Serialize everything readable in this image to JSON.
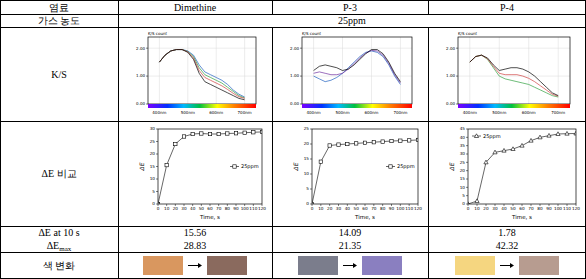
{
  "table": {
    "header": [
      "염료",
      "Dimethine",
      "P-3",
      "P-4"
    ],
    "gas_row": {
      "label": "가스 농도",
      "value": "25ppm"
    },
    "ks_label": "K/S",
    "de_label": "ΔE 비교",
    "de10_label": "ΔE at 10 s",
    "de10": [
      15.56,
      14.09,
      1.78
    ],
    "demax_label": {
      "text": "ΔE",
      "sub": "max"
    },
    "demax": [
      28.83,
      21.35,
      42.32
    ],
    "color_label": "색 변화",
    "color_change": [
      {
        "from": "#d9975f",
        "to": "#8a6a5e"
      },
      {
        "from": "#7b7d8c",
        "to": "#8a7fc0"
      },
      {
        "from": "#f5d680",
        "to": "#b79c90"
      }
    ]
  },
  "chart_data": [
    {
      "type": "line",
      "ylabel": "K/S count",
      "grid": true,
      "x": [
        400,
        420,
        440,
        460,
        480,
        500,
        520,
        540,
        560,
        580,
        600,
        620,
        640,
        660,
        680,
        700
      ],
      "xlim": [
        360,
        740
      ],
      "xticks": [
        {
          "value": 400,
          "label": "400nm"
        },
        {
          "value": 500,
          "label": "500nm"
        },
        {
          "value": 600,
          "label": "600nm"
        },
        {
          "value": 700,
          "label": "700nm"
        }
      ],
      "ylim": [
        0,
        2.4
      ],
      "yticks": [
        {
          "value": 0,
          "label": "0.00"
        },
        {
          "value": 1,
          "label": "1.00"
        },
        {
          "value": 2,
          "label": "2.00"
        }
      ],
      "series": [
        {
          "color": "#2060c0",
          "values": [
            1.5,
            1.75,
            1.9,
            1.95,
            1.95,
            1.9,
            1.75,
            1.4,
            1.15,
            1.05,
            0.95,
            0.85,
            0.7,
            0.5,
            0.35,
            0.25
          ]
        },
        {
          "color": "#30a040",
          "values": [
            1.5,
            1.75,
            1.9,
            1.95,
            1.95,
            1.88,
            1.7,
            1.3,
            1.05,
            0.95,
            0.85,
            0.75,
            0.6,
            0.45,
            0.3,
            0.22
          ]
        },
        {
          "color": "#d04040",
          "values": [
            1.5,
            1.75,
            1.9,
            1.95,
            1.95,
            1.87,
            1.65,
            1.2,
            0.95,
            0.85,
            0.75,
            0.65,
            0.52,
            0.38,
            0.26,
            0.2
          ]
        },
        {
          "color": "#000000",
          "values": [
            1.5,
            1.75,
            1.9,
            1.95,
            1.95,
            1.85,
            1.6,
            1.1,
            0.8,
            0.7,
            0.6,
            0.5,
            0.4,
            0.3,
            0.2,
            0.15
          ]
        }
      ]
    },
    {
      "type": "line",
      "ylabel": "K/S count",
      "grid": true,
      "x": [
        400,
        420,
        440,
        460,
        480,
        500,
        520,
        540,
        560,
        580,
        600,
        620,
        640,
        660,
        680,
        700
      ],
      "xlim": [
        360,
        740
      ],
      "xticks": [
        {
          "value": 400,
          "label": "400nm"
        },
        {
          "value": 500,
          "label": "500nm"
        },
        {
          "value": 600,
          "label": "600nm"
        },
        {
          "value": 700,
          "label": "700nm"
        }
      ],
      "ylim": [
        0,
        2.4
      ],
      "yticks": [
        {
          "value": 0,
          "label": "0.00"
        },
        {
          "value": 1,
          "label": "1.00"
        },
        {
          "value": 2,
          "label": "2.00"
        }
      ],
      "series": [
        {
          "color": "#2060c0",
          "values": [
            1.0,
            0.9,
            0.8,
            0.85,
            0.95,
            1.1,
            1.3,
            1.5,
            1.7,
            1.85,
            1.9,
            1.85,
            1.7,
            1.4,
            1.0,
            0.7
          ]
        },
        {
          "color": "#7030a0",
          "values": [
            1.1,
            1.15,
            1.1,
            1.05,
            1.05,
            1.1,
            1.25,
            1.45,
            1.65,
            1.82,
            1.92,
            1.9,
            1.75,
            1.45,
            1.05,
            0.75
          ]
        },
        {
          "color": "#000000",
          "values": [
            1.2,
            1.35,
            1.4,
            1.35,
            1.3,
            1.2,
            1.25,
            1.4,
            1.6,
            1.8,
            1.95,
            1.95,
            1.8,
            1.5,
            1.1,
            0.8
          ]
        }
      ]
    },
    {
      "type": "line",
      "ylabel": "K/S count",
      "grid": true,
      "x": [
        400,
        420,
        440,
        460,
        480,
        500,
        520,
        540,
        560,
        580,
        600,
        620,
        640,
        660,
        680,
        700
      ],
      "xlim": [
        360,
        740
      ],
      "xticks": [
        {
          "value": 400,
          "label": "400nm"
        },
        {
          "value": 500,
          "label": "500nm"
        },
        {
          "value": 600,
          "label": "600nm"
        },
        {
          "value": 700,
          "label": "700nm"
        }
      ],
      "ylim": [
        0,
        2.4
      ],
      "yticks": [
        {
          "value": 0,
          "label": "0.00"
        },
        {
          "value": 1,
          "label": "1.00"
        },
        {
          "value": 2,
          "label": "2.00"
        }
      ],
      "series": [
        {
          "color": "#30a040",
          "values": [
            1.5,
            1.7,
            1.75,
            1.6,
            1.3,
            1.0,
            0.9,
            0.85,
            0.8,
            0.75,
            0.7,
            0.6,
            0.5,
            0.4,
            0.3,
            0.25
          ]
        },
        {
          "color": "#d04040",
          "values": [
            1.5,
            1.7,
            1.75,
            1.62,
            1.35,
            1.1,
            1.05,
            1.05,
            1.05,
            1.0,
            0.92,
            0.8,
            0.65,
            0.5,
            0.35,
            0.28
          ]
        },
        {
          "color": "#000000",
          "values": [
            1.5,
            1.7,
            1.75,
            1.65,
            1.4,
            1.2,
            1.25,
            1.3,
            1.3,
            1.25,
            1.15,
            1.0,
            0.8,
            0.6,
            0.4,
            0.3
          ]
        }
      ]
    },
    {
      "type": "line",
      "xlabel": "Time, s",
      "ylabel": "ΔE",
      "legend": "center right",
      "x": [
        0,
        10,
        20,
        30,
        40,
        50,
        60,
        70,
        80,
        90,
        100,
        110,
        120
      ],
      "xlim": [
        0,
        120
      ],
      "xticks": [
        0,
        10,
        20,
        30,
        40,
        50,
        60,
        70,
        80,
        90,
        100,
        110,
        120
      ],
      "ylim": [
        0,
        30
      ],
      "yticks": [
        0,
        5,
        10,
        15,
        20,
        25,
        30
      ],
      "series": [
        {
          "name": "25ppm",
          "color": "#000000",
          "marker": "square",
          "values": [
            0,
            15.56,
            24,
            27,
            28,
            28.2,
            28,
            28,
            28.2,
            28.3,
            28.5,
            28.7,
            28.83
          ]
        }
      ]
    },
    {
      "type": "line",
      "xlabel": "Time, s",
      "ylabel": "ΔE",
      "legend": "center right",
      "x": [
        0,
        10,
        20,
        30,
        40,
        50,
        60,
        70,
        80,
        90,
        100,
        110,
        120
      ],
      "xlim": [
        0,
        120
      ],
      "xticks": [
        0,
        10,
        20,
        30,
        40,
        50,
        60,
        70,
        80,
        90,
        100,
        110,
        120
      ],
      "ylim": [
        0,
        25
      ],
      "yticks": [
        0,
        5,
        10,
        15,
        20,
        25
      ],
      "series": [
        {
          "name": "25ppm",
          "color": "#000000",
          "marker": "square",
          "values": [
            0,
            14.09,
            19.5,
            19.8,
            20,
            20.2,
            20.4,
            20.6,
            20.8,
            21,
            21.1,
            21.2,
            21.35
          ]
        }
      ]
    },
    {
      "type": "line",
      "xlabel": "Time, s",
      "ylabel": "ΔE",
      "legend": "upper left",
      "x": [
        0,
        10,
        20,
        30,
        40,
        50,
        60,
        70,
        80,
        90,
        100,
        110,
        120
      ],
      "xlim": [
        0,
        120
      ],
      "xticks": [
        0,
        10,
        20,
        30,
        40,
        50,
        60,
        70,
        80,
        90,
        100,
        110,
        120
      ],
      "ylim": [
        0,
        45
      ],
      "yticks": [
        0,
        5,
        10,
        15,
        20,
        25,
        30,
        35,
        40,
        45
      ],
      "series": [
        {
          "name": "25ppm",
          "color": "#000000",
          "marker": "triangle",
          "values": [
            0,
            1.78,
            25,
            31,
            32,
            33,
            35,
            38,
            40,
            41,
            42,
            42.2,
            42.32
          ]
        }
      ]
    }
  ]
}
